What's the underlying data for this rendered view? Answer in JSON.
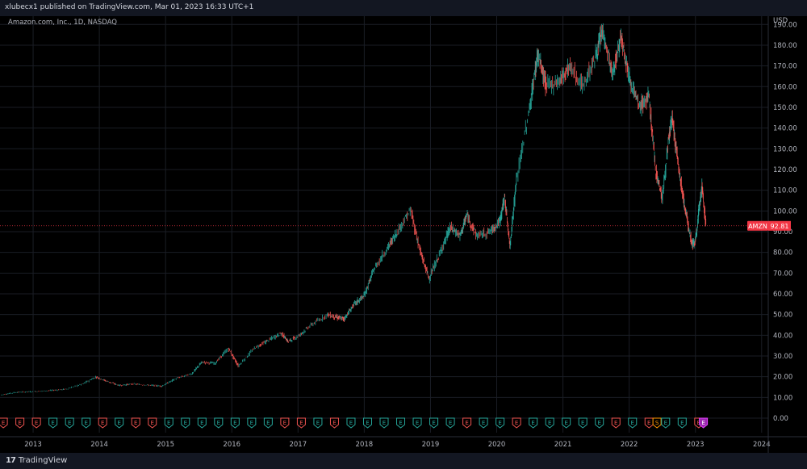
{
  "header": {
    "publisher_text": "xlubecx1 published on TradingView.com, Mar 01, 2023 16:33 UTC+1"
  },
  "footer": {
    "brand": "TradingView",
    "brand_mark": "17"
  },
  "chart_data": {
    "type": "line",
    "title": "Amazon.com, Inc., 1D, NASDAQ",
    "currency": "USD",
    "ticker": "AMZN",
    "last_price": "92.81",
    "y_ticks": [
      "0.00",
      "10.00",
      "20.00",
      "30.00",
      "40.00",
      "50.00",
      "60.00",
      "70.00",
      "80.00",
      "90.00",
      "100.00",
      "110.00",
      "120.00",
      "130.00",
      "140.00",
      "150.00",
      "160.00",
      "170.00",
      "180.00",
      "190.00"
    ],
    "x_ticks": [
      "2013",
      "2014",
      "2015",
      "2016",
      "2017",
      "2018",
      "2019",
      "2020",
      "2021",
      "2022",
      "2023",
      "2024"
    ],
    "ylim": [
      -7,
      194
    ],
    "xlim": [
      2012.5,
      2024.1
    ],
    "grid": true,
    "colors": {
      "up": "#26a69a",
      "down": "#ef5350",
      "last_label": "#f23645"
    },
    "series": [
      {
        "values": [
          [
            2012.51,
            11.2
          ],
          [
            2012.75,
            12.5
          ],
          [
            2013.0,
            12.8
          ],
          [
            2013.25,
            13.3
          ],
          [
            2013.5,
            14.0
          ],
          [
            2013.75,
            16.5
          ],
          [
            2013.95,
            19.9
          ],
          [
            2014.1,
            18.0
          ],
          [
            2014.3,
            15.8
          ],
          [
            2014.5,
            16.5
          ],
          [
            2014.75,
            15.9
          ],
          [
            2014.95,
            15.5
          ],
          [
            2015.15,
            19.0
          ],
          [
            2015.4,
            21.5
          ],
          [
            2015.55,
            27.0
          ],
          [
            2015.75,
            26.5
          ],
          [
            2015.95,
            33.7
          ],
          [
            2016.1,
            25.2
          ],
          [
            2016.35,
            34.0
          ],
          [
            2016.55,
            37.5
          ],
          [
            2016.75,
            41.0
          ],
          [
            2016.85,
            37.0
          ],
          [
            2017.0,
            39.5
          ],
          [
            2017.2,
            45.0
          ],
          [
            2017.45,
            50.0
          ],
          [
            2017.6,
            48.5
          ],
          [
            2017.7,
            48.0
          ],
          [
            2017.85,
            55.0
          ],
          [
            2018.0,
            59.0
          ],
          [
            2018.15,
            72.0
          ],
          [
            2018.35,
            82.0
          ],
          [
            2018.5,
            90.0
          ],
          [
            2018.7,
            100.5
          ],
          [
            2018.85,
            80.0
          ],
          [
            2018.98,
            67.5
          ],
          [
            2019.15,
            80.0
          ],
          [
            2019.3,
            92.0
          ],
          [
            2019.45,
            88.0
          ],
          [
            2019.55,
            98.0
          ],
          [
            2019.7,
            88.0
          ],
          [
            2019.9,
            90.0
          ],
          [
            2020.05,
            95.0
          ],
          [
            2020.12,
            107.0
          ],
          [
            2020.2,
            83.0
          ],
          [
            2020.3,
            115.0
          ],
          [
            2020.5,
            150.0
          ],
          [
            2020.62,
            176.0
          ],
          [
            2020.75,
            160.0
          ],
          [
            2020.95,
            163.0
          ],
          [
            2021.1,
            170.0
          ],
          [
            2021.3,
            160.0
          ],
          [
            2021.5,
            175.0
          ],
          [
            2021.6,
            187.0
          ],
          [
            2021.75,
            165.0
          ],
          [
            2021.88,
            185.0
          ],
          [
            2022.0,
            165.0
          ],
          [
            2022.15,
            150.0
          ],
          [
            2022.3,
            155.0
          ],
          [
            2022.4,
            120.0
          ],
          [
            2022.5,
            106.0
          ],
          [
            2022.6,
            135.0
          ],
          [
            2022.65,
            145.0
          ],
          [
            2022.75,
            120.0
          ],
          [
            2022.85,
            100.0
          ],
          [
            2022.95,
            84.0
          ],
          [
            2023.0,
            85.0
          ],
          [
            2023.05,
            100.0
          ],
          [
            2023.1,
            112.0
          ],
          [
            2023.16,
            92.81
          ]
        ]
      }
    ],
    "earnings_markers": [
      {
        "x": 2012.55,
        "label": "E",
        "kind": "down"
      },
      {
        "x": 2012.8,
        "label": "E",
        "kind": "down"
      },
      {
        "x": 2013.05,
        "label": "E",
        "kind": "down"
      },
      {
        "x": 2013.3,
        "label": "E",
        "kind": "up"
      },
      {
        "x": 2013.55,
        "label": "E",
        "kind": "up"
      },
      {
        "x": 2013.8,
        "label": "E",
        "kind": "up"
      },
      {
        "x": 2014.05,
        "label": "E",
        "kind": "down"
      },
      {
        "x": 2014.3,
        "label": "E",
        "kind": "up"
      },
      {
        "x": 2014.55,
        "label": "E",
        "kind": "down"
      },
      {
        "x": 2014.8,
        "label": "E",
        "kind": "down"
      },
      {
        "x": 2015.05,
        "label": "E",
        "kind": "up"
      },
      {
        "x": 2015.3,
        "label": "E",
        "kind": "up"
      },
      {
        "x": 2015.55,
        "label": "E",
        "kind": "up"
      },
      {
        "x": 2015.8,
        "label": "E",
        "kind": "up"
      },
      {
        "x": 2016.05,
        "label": "E",
        "kind": "up"
      },
      {
        "x": 2016.3,
        "label": "E",
        "kind": "up"
      },
      {
        "x": 2016.55,
        "label": "E",
        "kind": "up"
      },
      {
        "x": 2016.8,
        "label": "E",
        "kind": "down"
      },
      {
        "x": 2017.05,
        "label": "E",
        "kind": "down"
      },
      {
        "x": 2017.3,
        "label": "E",
        "kind": "up"
      },
      {
        "x": 2017.55,
        "label": "E",
        "kind": "down"
      },
      {
        "x": 2017.8,
        "label": "E",
        "kind": "up"
      },
      {
        "x": 2018.05,
        "label": "E",
        "kind": "up"
      },
      {
        "x": 2018.3,
        "label": "E",
        "kind": "up"
      },
      {
        "x": 2018.55,
        "label": "E",
        "kind": "up"
      },
      {
        "x": 2018.8,
        "label": "E",
        "kind": "up"
      },
      {
        "x": 2019.05,
        "label": "E",
        "kind": "up"
      },
      {
        "x": 2019.3,
        "label": "E",
        "kind": "up"
      },
      {
        "x": 2019.55,
        "label": "E",
        "kind": "down"
      },
      {
        "x": 2019.8,
        "label": "E",
        "kind": "up"
      },
      {
        "x": 2020.05,
        "label": "E",
        "kind": "up"
      },
      {
        "x": 2020.3,
        "label": "E",
        "kind": "down"
      },
      {
        "x": 2020.55,
        "label": "E",
        "kind": "up"
      },
      {
        "x": 2020.8,
        "label": "E",
        "kind": "up"
      },
      {
        "x": 2021.05,
        "label": "E",
        "kind": "up"
      },
      {
        "x": 2021.3,
        "label": "E",
        "kind": "up"
      },
      {
        "x": 2021.55,
        "label": "E",
        "kind": "up"
      },
      {
        "x": 2021.8,
        "label": "E",
        "kind": "down"
      },
      {
        "x": 2022.05,
        "label": "E",
        "kind": "up"
      },
      {
        "x": 2022.3,
        "label": "E",
        "kind": "down"
      },
      {
        "x": 2022.42,
        "label": "S",
        "kind": "split"
      },
      {
        "x": 2022.55,
        "label": "E",
        "kind": "up"
      },
      {
        "x": 2022.8,
        "label": "E",
        "kind": "up"
      },
      {
        "x": 2023.05,
        "label": "E",
        "kind": "down"
      },
      {
        "x": 2023.12,
        "label": "E",
        "kind": "future"
      }
    ]
  }
}
